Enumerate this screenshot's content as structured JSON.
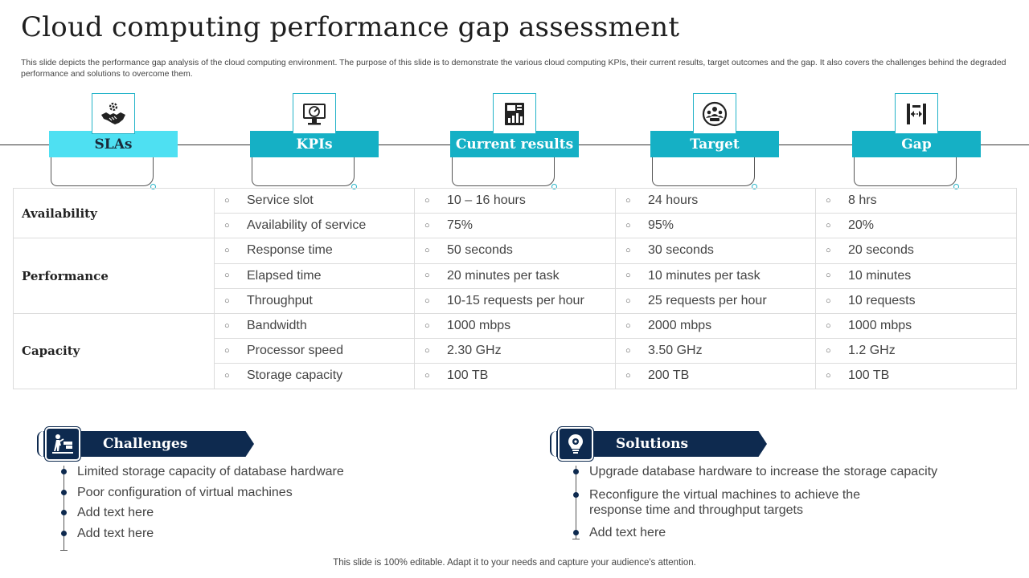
{
  "title": "Cloud computing performance gap assessment",
  "subtitle": "This slide depicts the performance gap analysis of the cloud computing environment. The purpose of this slide is to demonstrate the various cloud computing KPIs, their current results, target outcomes and the gap. It also covers the challenges behind the degraded performance and solutions to overcome them.",
  "headers": [
    {
      "label": "SLAs",
      "icon": "handshake-gear-icon"
    },
    {
      "label": "KPIs",
      "icon": "monitor-gauge-icon"
    },
    {
      "label": "Current results",
      "icon": "report-chart-icon"
    },
    {
      "label": "Target",
      "icon": "team-target-icon"
    },
    {
      "label": "Gap",
      "icon": "gap-measure-icon"
    }
  ],
  "bullet_glyph": "○",
  "categories": {
    "availability": "Availability",
    "performance": "Performance",
    "capacity": "Capacity"
  },
  "rows": [
    {
      "kpi": "Service slot",
      "current": "10 – 16 hours",
      "target": "24 hours",
      "gap": "8 hrs"
    },
    {
      "kpi": "Availability of service",
      "current": "75%",
      "target": "95%",
      "gap": "20%"
    },
    {
      "kpi": "Response time",
      "current": "50 seconds",
      "target": "30 seconds",
      "gap": "20 seconds"
    },
    {
      "kpi": "Elapsed time",
      "current": "20 minutes per task",
      "target": "10 minutes per task",
      "gap": "10 minutes"
    },
    {
      "kpi": "Throughput",
      "current": "10-15 requests per hour",
      "target": "25 requests per hour",
      "gap": "10 requests"
    },
    {
      "kpi": "Bandwidth",
      "current": "1000 mbps",
      "target": "2000 mbps",
      "gap": "1000 mbps"
    },
    {
      "kpi": "Processor speed",
      "current": "2.30 GHz",
      "target": "3.50 GHz",
      "gap": "1.2 GHz"
    },
    {
      "kpi": "Storage capacity",
      "current": "100 TB",
      "target": "200 TB",
      "gap": "100 TB"
    }
  ],
  "challenges": {
    "label": "Challenges",
    "icon": "person-obstacle-icon",
    "items": [
      "Limited storage capacity of database hardware",
      "Poor configuration of virtual machines",
      "Add text here",
      "Add text here"
    ]
  },
  "solutions": {
    "label": "Solutions",
    "icon": "lightbulb-gear-icon",
    "items": [
      "Upgrade database hardware to increase the storage capacity",
      "Reconfigure the virtual machines to achieve the response time and throughput targets",
      "Add text here"
    ]
  },
  "footer": "This slide is 100% editable. Adapt it to your needs and capture your audience's attention.",
  "colors": {
    "teal": "#15b0c5",
    "light_teal": "#4ee0f2",
    "navy": "#0e2a4f",
    "grid": "#dcdcdc"
  }
}
